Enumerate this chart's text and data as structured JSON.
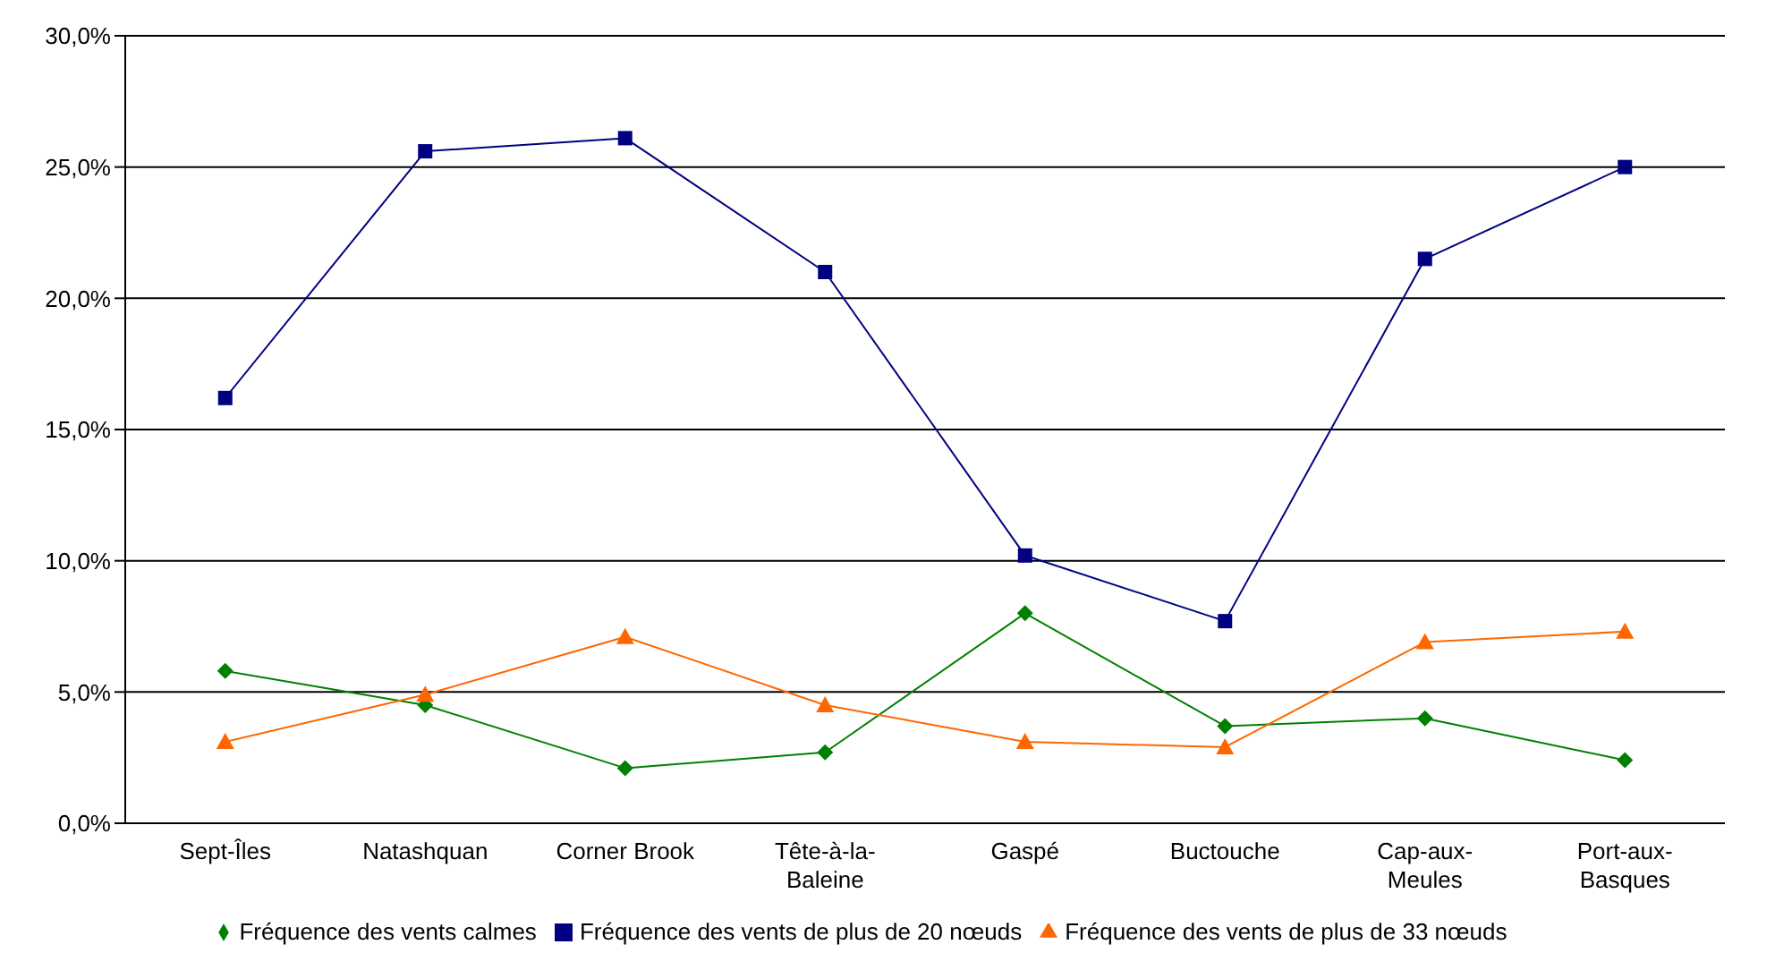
{
  "chart_data": {
    "type": "line",
    "categories": [
      "Sept-Îles",
      "Natashquan",
      "Corner Brook",
      "Tête-à-la-Baleine",
      "Gaspé",
      "Buctouche",
      "Cap-aux-Meules",
      "Port-aux-Basques"
    ],
    "series": [
      {
        "name": "Fréquence des vents calmes",
        "color": "#008000",
        "marker": "diamond",
        "values": [
          5.8,
          4.5,
          2.1,
          2.7,
          8.0,
          3.7,
          4.0,
          2.4
        ]
      },
      {
        "name": "Fréquence des vents de plus de 20 nœuds",
        "color": "#000080",
        "marker": "square",
        "values": [
          16.2,
          25.6,
          26.1,
          21.0,
          10.2,
          7.7,
          21.5,
          25.0
        ]
      },
      {
        "name": "Fréquence des vents de plus de 33 nœuds",
        "color": "#ff6600",
        "marker": "triangle",
        "values": [
          3.1,
          4.9,
          7.1,
          4.5,
          3.1,
          2.9,
          6.9,
          7.3
        ]
      }
    ],
    "ylim": [
      0,
      30
    ],
    "yticks": [
      {
        "value": 0,
        "label": "0,0%"
      },
      {
        "value": 5,
        "label": "5,0%"
      },
      {
        "value": 10,
        "label": "10,0%"
      },
      {
        "value": 15,
        "label": "15,0%"
      },
      {
        "value": 20,
        "label": "20,0%"
      },
      {
        "value": 25,
        "label": "25,0%"
      },
      {
        "value": 30,
        "label": "30,0%"
      }
    ],
    "grid": "y",
    "legend": "bottom"
  }
}
